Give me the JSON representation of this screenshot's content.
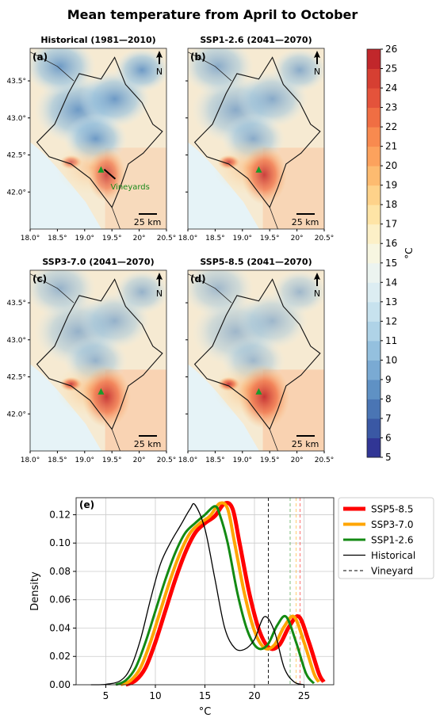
{
  "title": "Mean temperature from April to October",
  "colorbar": {
    "unit": "°C",
    "ticks": [
      5,
      6,
      7,
      8,
      9,
      10,
      11,
      12,
      13,
      14,
      15,
      16,
      17,
      18,
      19,
      20,
      21,
      22,
      23,
      24,
      25,
      26
    ],
    "colors": [
      "#313695",
      "#3a58a4",
      "#4a75b4",
      "#5f91c4",
      "#7aaad3",
      "#94c0de",
      "#afd3e7",
      "#c7e2ee",
      "#dcedf2",
      "#ecf4f0",
      "#f7f6e1",
      "#fcf0c7",
      "#fee4a6",
      "#fed28a",
      "#fdbb70",
      "#fca25d",
      "#f88a4f",
      "#f06e43",
      "#e4533b",
      "#d63f32",
      "#c1272b"
    ]
  },
  "maps": [
    {
      "panel": "(a)",
      "title": "Historical (1981—2010)",
      "scale": "25 km",
      "north": "N",
      "annotation": "Vineyards"
    },
    {
      "panel": "(b)",
      "title": "SSP1-2.6 (2041—2070)",
      "scale": "25 km",
      "north": "N"
    },
    {
      "panel": "(c)",
      "title": "SSP3-7.0  (2041—2070)",
      "scale": "25 km",
      "north": "N"
    },
    {
      "panel": "(d)",
      "title": "SSP5-8.5 (2041—2070)",
      "scale": "25 km",
      "north": "N"
    }
  ],
  "map_axes": {
    "x_ticks": [
      "18.0°",
      "18.5°",
      "19.0°",
      "19.5°",
      "20°",
      "20.5°"
    ],
    "y_ticks": [
      "43.5°",
      "43.0°",
      "42.5°",
      "42.0°"
    ]
  },
  "chart_data": {
    "type": "line",
    "panel": "(e)",
    "xlabel": "°C",
    "ylabel": "Density",
    "xlim": [
      2,
      28
    ],
    "ylim": [
      0,
      0.132
    ],
    "x_ticks": [
      5,
      10,
      15,
      20,
      25
    ],
    "y_ticks": [
      "0.00",
      "0.02",
      "0.04",
      "0.06",
      "0.08",
      "0.10",
      "0.12"
    ],
    "grid": true,
    "legend_position": "right",
    "series": [
      {
        "name": "SSP5-8.5",
        "color": "#ff0000",
        "width": 5,
        "vline": 24.6,
        "x": [
          7,
          8,
          9,
          10,
          11,
          12,
          13,
          14,
          15,
          16,
          17,
          17.8,
          18.5,
          19.5,
          20.5,
          21.5,
          22.5,
          23.5,
          24.5,
          25.5,
          26.5,
          27
        ],
        "y": [
          0.0,
          0.003,
          0.012,
          0.03,
          0.052,
          0.074,
          0.093,
          0.107,
          0.114,
          0.119,
          0.128,
          0.124,
          0.1,
          0.064,
          0.038,
          0.026,
          0.028,
          0.041,
          0.048,
          0.03,
          0.008,
          0.002
        ]
      },
      {
        "name": "SSP3-7.0",
        "color": "#ffa500",
        "width": 4,
        "vline": 24.2,
        "x": [
          6.5,
          7.5,
          8.5,
          9.5,
          10.5,
          11.5,
          12.5,
          13.5,
          14.5,
          15.5,
          16.5,
          17.3,
          18,
          19,
          20,
          21,
          22,
          23,
          24,
          25,
          26,
          26.5
        ],
        "y": [
          0.0,
          0.003,
          0.012,
          0.03,
          0.052,
          0.074,
          0.093,
          0.107,
          0.114,
          0.119,
          0.128,
          0.124,
          0.1,
          0.064,
          0.038,
          0.026,
          0.028,
          0.041,
          0.048,
          0.03,
          0.008,
          0.002
        ]
      },
      {
        "name": "SSP1-2.6",
        "color": "#138a13",
        "width": 3,
        "vline": 23.6,
        "x": [
          6,
          7,
          8,
          9,
          10,
          11,
          12,
          13,
          14,
          15,
          16,
          16.5,
          17.3,
          18.3,
          19.3,
          20.3,
          21.3,
          22.3,
          23.2,
          24.2,
          25.2,
          26
        ],
        "y": [
          0.0,
          0.003,
          0.012,
          0.03,
          0.052,
          0.074,
          0.093,
          0.107,
          0.114,
          0.12,
          0.126,
          0.12,
          0.1,
          0.064,
          0.038,
          0.026,
          0.028,
          0.042,
          0.048,
          0.03,
          0.008,
          0.001
        ]
      },
      {
        "name": "Historical",
        "color": "#000000",
        "width": 1.3,
        "vline": null,
        "x": [
          3.5,
          5,
          6.5,
          7.5,
          8.5,
          9.5,
          10.5,
          11.5,
          12.5,
          13.5,
          14,
          15,
          16,
          17,
          18,
          19,
          20,
          21,
          22,
          23,
          24,
          25
        ],
        "y": [
          0.0,
          0.0003,
          0.003,
          0.012,
          0.032,
          0.06,
          0.085,
          0.1,
          0.112,
          0.124,
          0.127,
          0.11,
          0.075,
          0.04,
          0.026,
          0.025,
          0.032,
          0.048,
          0.038,
          0.012,
          0.002,
          0.0
        ]
      },
      {
        "name": "Vineyard",
        "color": "#000000",
        "width": 1,
        "dashed": true,
        "vline": 21.4
      }
    ]
  }
}
